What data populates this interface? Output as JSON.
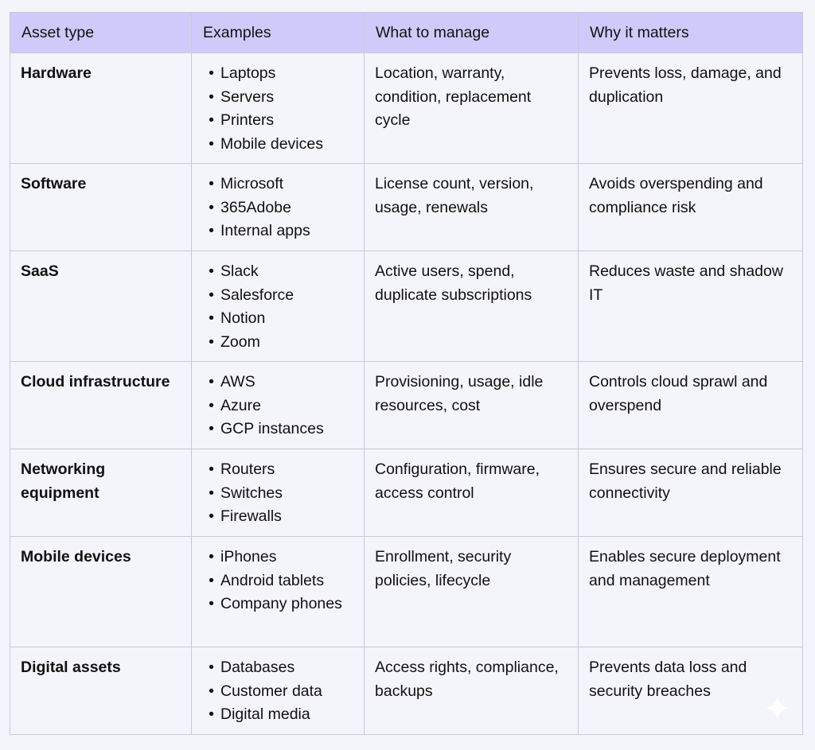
{
  "table": {
    "headers": [
      "Asset type",
      "Examples",
      "What to manage",
      "Why it matters"
    ],
    "rows": [
      {
        "asset": "Hardware",
        "examples": [
          "Laptops",
          "Servers",
          "Printers",
          "Mobile devices"
        ],
        "manage": "Location, warranty, condition, replacement cycle",
        "why": "Prevents loss, damage, and duplication"
      },
      {
        "asset": "Software",
        "examples": [
          "Microsoft",
          "365Adobe",
          "Internal apps"
        ],
        "manage": "License count, version, usage, renewals",
        "why": "Avoids overspending and compliance risk"
      },
      {
        "asset": "SaaS",
        "examples": [
          "Slack",
          "Salesforce",
          "Notion",
          "Zoom"
        ],
        "manage": "Active users, spend, duplicate subscriptions",
        "why": "Reduces waste and shadow IT"
      },
      {
        "asset": "Cloud infrastructure",
        "examples": [
          "AWS",
          "Azure",
          "GCP instances"
        ],
        "manage": "Provisioning, usage, idle resources, cost",
        "why": "Controls cloud sprawl and overspend"
      },
      {
        "asset": "Networking equipment",
        "examples": [
          "Routers",
          "Switches",
          "Firewalls"
        ],
        "manage": "Configuration, firmware, access control",
        "why": "Ensures secure and reliable connectivity"
      },
      {
        "asset": "Mobile devices",
        "examples": [
          "iPhones",
          "Android tablets",
          "Company phones"
        ],
        "manage": "Enrollment, security policies, lifecycle",
        "why": "Enables secure deployment and management"
      },
      {
        "asset": "Digital assets",
        "examples": [
          "Databases",
          "Customer data",
          "Digital media"
        ],
        "manage": "Access rights, compliance, backups",
        "why": "Prevents data loss and security breaches"
      }
    ]
  },
  "colors": {
    "header_bg": "#cfcafa",
    "page_bg": "#f4f4fb",
    "border": "#c9c9d6"
  },
  "icons": {
    "corner": "sparkle-icon"
  }
}
